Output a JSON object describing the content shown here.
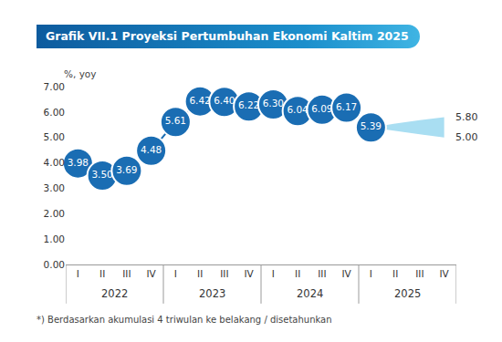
{
  "chart_data": {
    "type": "line",
    "title": "Grafik VII.1 Proyeksi Pertumbuhan Ekonomi Kaltim 2025",
    "y_label": "%, yoy",
    "note": "*) Berdasarkan akumulasi 4 triwulan ke belakang / disetahunkan",
    "categories": [
      "I",
      "II",
      "III",
      "IV",
      "I",
      "II",
      "III",
      "IV",
      "I",
      "II",
      "III",
      "IV",
      "I",
      "II",
      "III",
      "IV"
    ],
    "category_groups": [
      {
        "label": "2022",
        "size": 4
      },
      {
        "label": "2023",
        "size": 4
      },
      {
        "label": "2024",
        "size": 4
      },
      {
        "label": "2025",
        "size": 4
      }
    ],
    "values": [
      3.98,
      3.5,
      3.69,
      4.48,
      5.61,
      6.42,
      6.4,
      6.22,
      6.3,
      6.04,
      6.09,
      6.17,
      5.39,
      null,
      null,
      null
    ],
    "value_labels": [
      "3.98",
      "3.50",
      "3.69",
      "4.48",
      "5.61",
      "6.42",
      "6.40",
      "6.22",
      "6.30",
      "6.04",
      "6.09",
      "6.17",
      "5.39",
      null,
      null,
      null
    ],
    "color": "#1a6db3",
    "marker": "circle",
    "data_labels": true,
    "projection": {
      "color": "#a9def2",
      "upper": [
        null,
        null,
        null,
        null,
        null,
        null,
        null,
        null,
        null,
        null,
        null,
        null,
        5.39,
        5.55,
        5.68,
        5.8
      ],
      "upper_labels": [
        null,
        null,
        null,
        null,
        null,
        null,
        null,
        null,
        null,
        null,
        null,
        null,
        null,
        null,
        null,
        "5.80"
      ],
      "lower": [
        null,
        null,
        null,
        null,
        null,
        null,
        null,
        null,
        null,
        null,
        null,
        null,
        5.39,
        5.25,
        5.12,
        5.0
      ],
      "lower_labels": [
        null,
        null,
        null,
        null,
        null,
        null,
        null,
        null,
        null,
        null,
        null,
        null,
        null,
        null,
        null,
        "5.00"
      ]
    },
    "ylim": [
      0,
      7
    ],
    "yticks": [
      {
        "value": 0,
        "label": "0.00"
      },
      {
        "value": 1,
        "label": "1.00"
      },
      {
        "value": 2,
        "label": "2.00"
      },
      {
        "value": 3,
        "label": "3.00"
      },
      {
        "value": 4,
        "label": "4.00"
      },
      {
        "value": 5,
        "label": "5.00"
      },
      {
        "value": 6,
        "label": "6.00"
      },
      {
        "value": 7,
        "label": "7.00"
      }
    ],
    "grid": false
  }
}
